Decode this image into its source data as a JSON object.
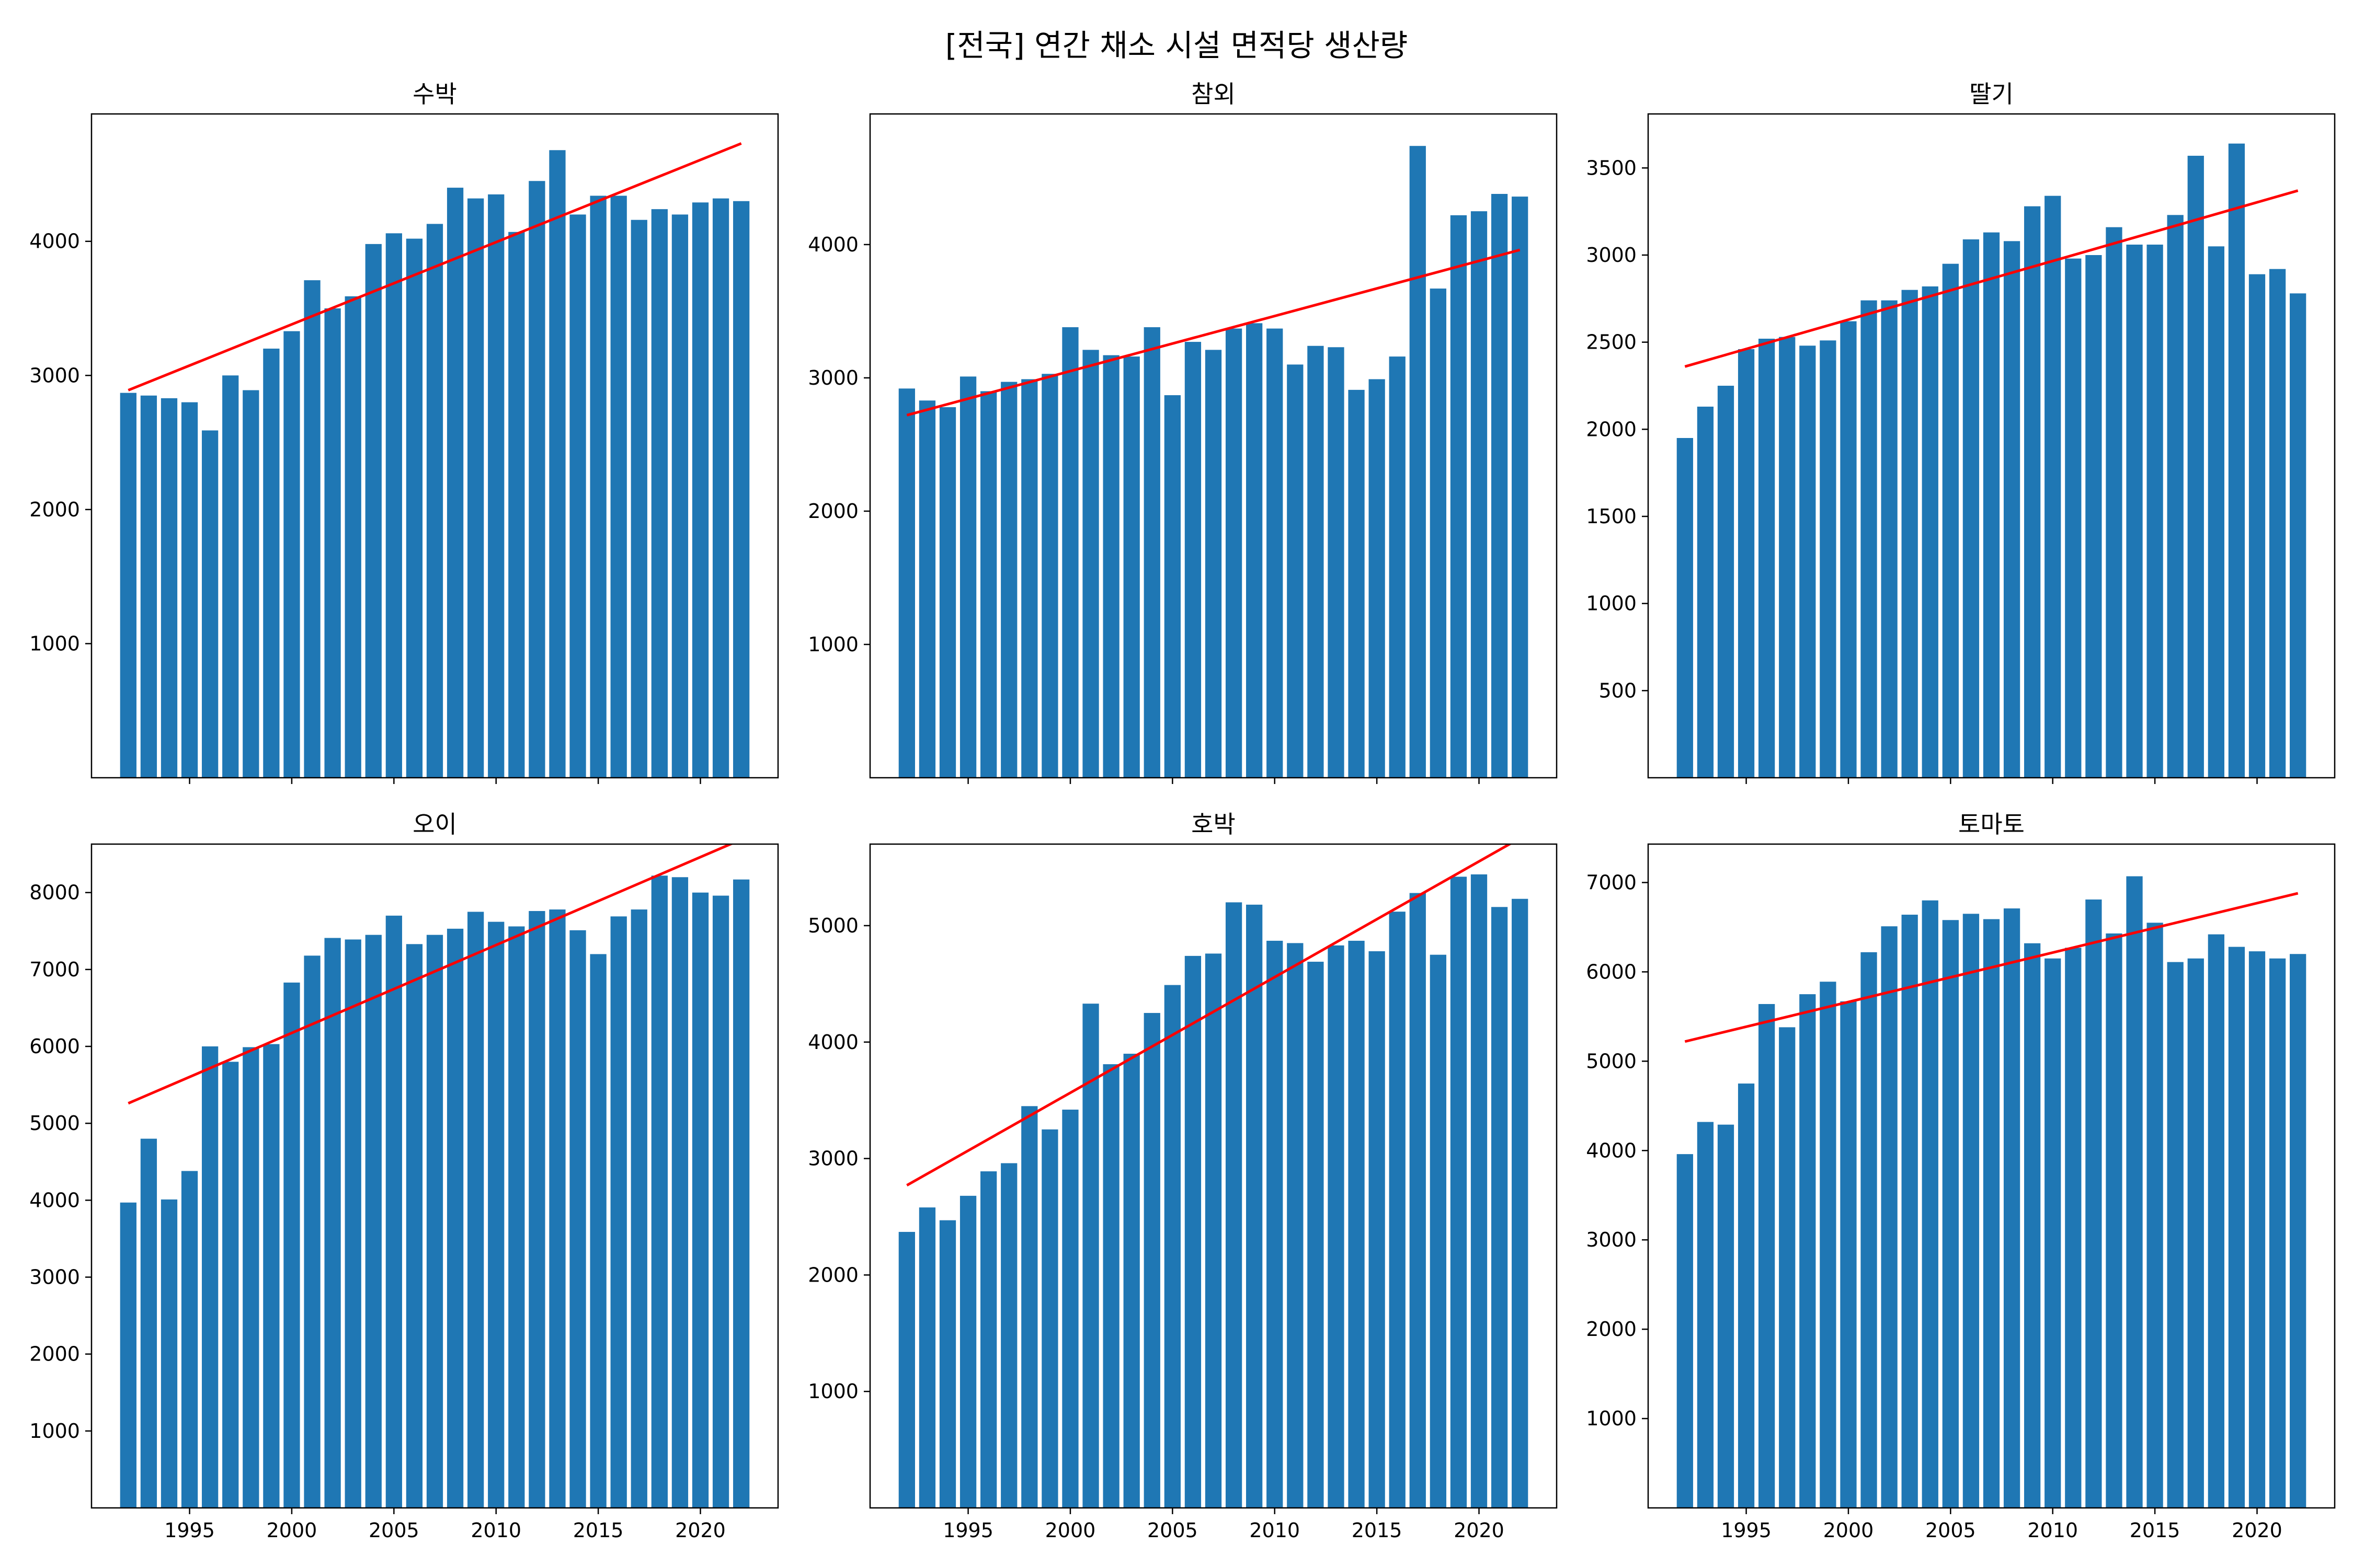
{
  "title": "[전국] 연간 채소 시설 면적당 생산량",
  "chart_data": [
    {
      "type": "bar",
      "title": "수박",
      "x": [
        1992,
        1993,
        1994,
        1995,
        1996,
        1997,
        1998,
        1999,
        2000,
        2001,
        2002,
        2003,
        2004,
        2005,
        2006,
        2007,
        2008,
        2009,
        2010,
        2011,
        2012,
        2013,
        2014,
        2015,
        2016,
        2017,
        2018,
        2019,
        2020,
        2021,
        2022
      ],
      "values": [
        2870,
        2850,
        2830,
        2800,
        2590,
        3000,
        2890,
        3200,
        3330,
        3710,
        3500,
        3590,
        3980,
        4060,
        4020,
        4130,
        4400,
        4320,
        4350,
        4070,
        4450,
        4680,
        4200,
        4340,
        4340,
        4160,
        4240,
        4200,
        4290,
        4320,
        4300
      ],
      "trend": [
        2890,
        4730
      ],
      "xlim": [
        1990.2,
        1923.8
      ],
      "ylim": [
        0,
        4950
      ],
      "yticks": [
        1000,
        2000,
        3000,
        4000
      ],
      "xticks": [
        1995,
        2000,
        2005,
        2010,
        2015,
        2020
      ],
      "bar_color": "#1f77b4",
      "trend_color": "#ff0000"
    },
    {
      "type": "bar",
      "title": "참외",
      "x": [
        1992,
        1993,
        1994,
        1995,
        1996,
        1997,
        1998,
        1999,
        2000,
        2001,
        2002,
        2003,
        2004,
        2005,
        2006,
        2007,
        2008,
        2009,
        2010,
        2011,
        2012,
        2013,
        2014,
        2015,
        2016,
        2017,
        2018,
        2019,
        2020,
        2021,
        2022
      ],
      "values": [
        2920,
        2830,
        2780,
        3010,
        2900,
        2970,
        2990,
        3030,
        3380,
        3210,
        3170,
        3160,
        3380,
        2870,
        3270,
        3210,
        3370,
        3410,
        3370,
        3100,
        3240,
        3230,
        2910,
        2990,
        3160,
        4740,
        3670,
        4220,
        4250,
        4380,
        4360
      ],
      "trend": [
        2720,
        3960
      ],
      "xlim": [
        1990.2,
        2023.8
      ],
      "ylim": [
        0,
        4980
      ],
      "yticks": [
        1000,
        2000,
        3000,
        4000
      ],
      "xticks": [
        1995,
        2000,
        2005,
        2010,
        2015,
        2020
      ],
      "bar_color": "#1f77b4",
      "trend_color": "#ff0000"
    },
    {
      "type": "bar",
      "title": "딸기",
      "x": [
        1992,
        1993,
        1994,
        1995,
        1996,
        1997,
        1998,
        1999,
        2000,
        2001,
        2002,
        2003,
        2004,
        2005,
        2006,
        2007,
        2008,
        2009,
        2010,
        2011,
        2012,
        2013,
        2014,
        2015,
        2016,
        2017,
        2018,
        2019,
        2020,
        2021,
        2022
      ],
      "values": [
        1950,
        2130,
        2250,
        2460,
        2520,
        2530,
        2480,
        2510,
        2620,
        2740,
        2740,
        2800,
        2820,
        2950,
        3090,
        3130,
        3080,
        3280,
        3340,
        2980,
        3000,
        3160,
        3060,
        3060,
        3230,
        3570,
        3050,
        3640,
        2890,
        2920,
        2780
      ],
      "trend": [
        2360,
        3370
      ],
      "xlim": [
        1990.2,
        2023.8
      ],
      "ylim": [
        0,
        3810
      ],
      "yticks": [
        500,
        1000,
        1500,
        2000,
        2500,
        3000,
        3500
      ],
      "xticks": [
        1995,
        2000,
        2005,
        2010,
        2015,
        2020
      ],
      "bar_color": "#1f77b4",
      "trend_color": "#ff0000"
    },
    {
      "type": "bar",
      "title": "오이",
      "x": [
        1992,
        1993,
        1994,
        1995,
        1996,
        1997,
        1998,
        1999,
        2000,
        2001,
        2002,
        2003,
        2004,
        2005,
        2006,
        2007,
        2008,
        2009,
        2010,
        2011,
        2012,
        2013,
        2014,
        2015,
        2016,
        2017,
        2018,
        2019,
        2020,
        2021,
        2022
      ],
      "values": [
        3970,
        4800,
        4010,
        4380,
        6000,
        5800,
        5990,
        6030,
        6830,
        7180,
        7410,
        7390,
        7450,
        7700,
        7330,
        7450,
        7530,
        7750,
        7620,
        7560,
        7760,
        7780,
        7510,
        7200,
        7690,
        7780,
        8220,
        8200,
        8000,
        7960,
        8170
      ],
      "trend": [
        5260,
        8690
      ],
      "xlim": [
        1990.2,
        2023.8
      ],
      "ylim": [
        0,
        8630
      ],
      "yticks": [
        1000,
        2000,
        3000,
        4000,
        5000,
        6000,
        7000,
        8000
      ],
      "xticks": [
        1995,
        2000,
        2005,
        2010,
        2015,
        2020
      ],
      "bar_color": "#1f77b4",
      "trend_color": "#ff0000"
    },
    {
      "type": "bar",
      "title": "호박",
      "x": [
        1992,
        1993,
        1994,
        1995,
        1996,
        1997,
        1998,
        1999,
        2000,
        2001,
        2002,
        2003,
        2004,
        2005,
        2006,
        2007,
        2008,
        2009,
        2010,
        2011,
        2012,
        2013,
        2014,
        2015,
        2016,
        2017,
        2018,
        2019,
        2020,
        2021,
        2022
      ],
      "values": [
        2370,
        2580,
        2470,
        2680,
        2890,
        2960,
        3450,
        3250,
        3420,
        4330,
        3810,
        3900,
        4250,
        4490,
        4740,
        4760,
        5200,
        5180,
        4870,
        4850,
        4690,
        4830,
        4870,
        4780,
        5120,
        5280,
        4750,
        5420,
        5440,
        5160,
        5230
      ],
      "trend": [
        2770,
        5750
      ],
      "xlim": [
        1990.2,
        2023.8
      ],
      "ylim": [
        0,
        5700
      ],
      "yticks": [
        1000,
        2000,
        3000,
        4000,
        5000
      ],
      "xticks": [
        1995,
        2000,
        2005,
        2010,
        2015,
        2020
      ],
      "bar_color": "#1f77b4",
      "trend_color": "#ff0000"
    },
    {
      "type": "bar",
      "title": "토마토",
      "x": [
        1992,
        1993,
        1994,
        1995,
        1996,
        1997,
        1998,
        1999,
        2000,
        2001,
        2002,
        2003,
        2004,
        2005,
        2006,
        2007,
        2008,
        2009,
        2010,
        2011,
        2012,
        2013,
        2014,
        2015,
        2016,
        2017,
        2018,
        2019,
        2020,
        2021,
        2022
      ],
      "values": [
        3960,
        4320,
        4290,
        4750,
        5640,
        5380,
        5750,
        5890,
        5670,
        6220,
        6510,
        6640,
        6800,
        6580,
        6650,
        6590,
        6710,
        6320,
        6150,
        6270,
        6810,
        6430,
        7070,
        6550,
        6110,
        6150,
        6420,
        6280,
        6230,
        6150,
        6200
      ],
      "trend": [
        5220,
        6880
      ],
      "xlim": [
        1990.2,
        2023.8
      ],
      "ylim": [
        0,
        7430
      ],
      "yticks": [
        1000,
        2000,
        3000,
        4000,
        5000,
        6000,
        7000
      ],
      "xticks": [
        1995,
        2000,
        2005,
        2010,
        2015,
        2020
      ],
      "bar_color": "#1f77b4",
      "trend_color": "#ff0000"
    }
  ]
}
